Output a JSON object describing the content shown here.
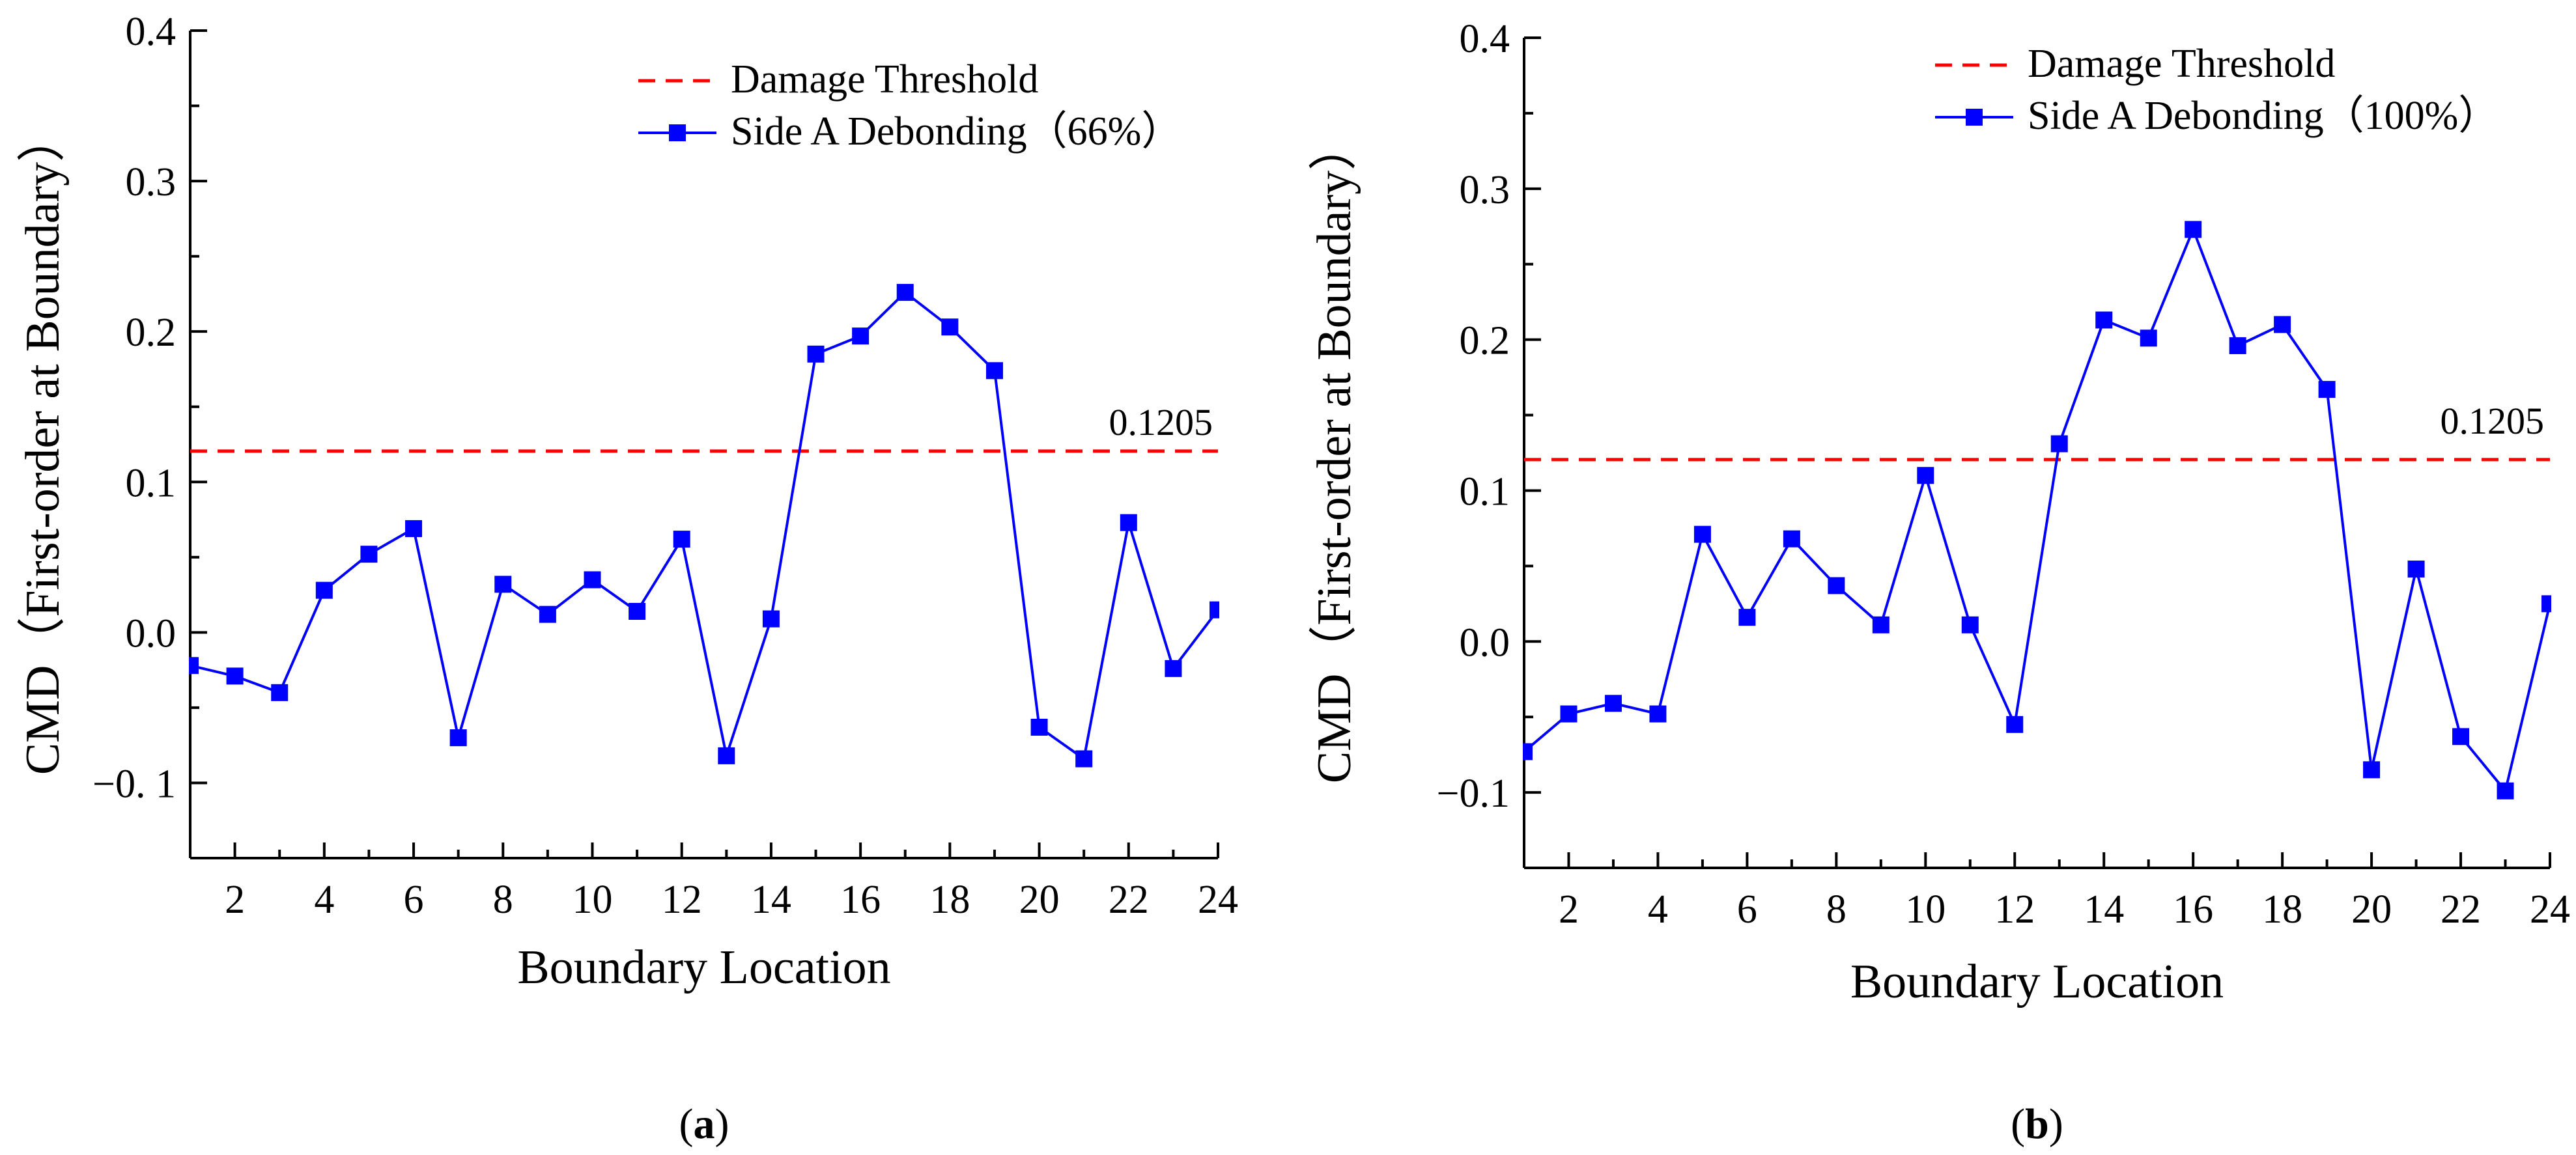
{
  "colors": {
    "series": "#0000ff",
    "threshold": "#ff0000",
    "axis": "#000000"
  },
  "chart_data": [
    {
      "type": "line",
      "panel_label_open": "(",
      "panel_label_letter": "a",
      "panel_label_close": ")",
      "xlabel": "Boundary Location",
      "ylabel": "CMD（First-order at Boundary）",
      "xlim": [
        1,
        24
      ],
      "ylim": [
        -0.15,
        0.4
      ],
      "x_ticks": [
        2,
        4,
        6,
        8,
        10,
        12,
        14,
        16,
        18,
        20,
        22,
        24
      ],
      "x_tick_labels": [
        "2",
        "4",
        "6",
        "8",
        "10",
        "12",
        "14",
        "16",
        "18",
        "20",
        "22",
        "24"
      ],
      "y_ticks": [
        -0.1,
        0.0,
        0.1,
        0.2,
        0.3,
        0.4
      ],
      "y_tick_labels": [
        "−0. 1",
        "0.0",
        "0.1",
        "0.2",
        "0.3",
        "0.4"
      ],
      "legend_position": "top-right",
      "threshold": {
        "name": "Damage Threshold",
        "value": 0.1205,
        "label": "0.1205"
      },
      "series": [
        {
          "name": "Side A Debonding（66%）",
          "marker": "square",
          "x": [
            1,
            2,
            3,
            4,
            5,
            6,
            7,
            8,
            9,
            10,
            11,
            12,
            13,
            14,
            15,
            16,
            17,
            18,
            19,
            20,
            21,
            22,
            23,
            24
          ],
          "values": [
            -0.022,
            -0.029,
            -0.04,
            0.028,
            0.052,
            0.069,
            -0.07,
            0.032,
            0.012,
            0.035,
            0.014,
            0.062,
            -0.082,
            0.009,
            0.185,
            0.197,
            0.226,
            0.203,
            0.174,
            -0.063,
            -0.084,
            0.073,
            -0.024,
            0.015
          ]
        }
      ]
    },
    {
      "type": "line",
      "panel_label_open": "(",
      "panel_label_letter": "b",
      "panel_label_close": ")",
      "xlabel": "Boundary Location",
      "ylabel": "CMD（First-order at Boundary）",
      "xlim": [
        1,
        24
      ],
      "ylim": [
        -0.15,
        0.4
      ],
      "x_ticks": [
        2,
        4,
        6,
        8,
        10,
        12,
        14,
        16,
        18,
        20,
        22,
        24
      ],
      "x_tick_labels": [
        "2",
        "4",
        "6",
        "8",
        "10",
        "12",
        "14",
        "16",
        "18",
        "20",
        "22",
        "24"
      ],
      "y_ticks": [
        -0.1,
        0.0,
        0.1,
        0.2,
        0.3,
        0.4
      ],
      "y_tick_labels": [
        "−0.1",
        "0.0",
        "0.1",
        "0.2",
        "0.3",
        "0.4"
      ],
      "legend_position": "top-right",
      "threshold": {
        "name": "Damage Threshold",
        "value": 0.1205,
        "label": "0.1205"
      },
      "series": [
        {
          "name": "Side A Debonding（100%）",
          "marker": "square",
          "x": [
            1,
            2,
            3,
            4,
            5,
            6,
            7,
            8,
            9,
            10,
            11,
            12,
            13,
            14,
            15,
            16,
            17,
            18,
            19,
            20,
            21,
            22,
            23,
            24
          ],
          "values": [
            -0.073,
            -0.048,
            -0.041,
            -0.048,
            0.071,
            0.016,
            0.068,
            0.037,
            0.011,
            0.11,
            0.011,
            -0.055,
            0.131,
            0.213,
            0.201,
            0.273,
            0.196,
            0.21,
            0.167,
            -0.085,
            0.048,
            -0.063,
            -0.099,
            0.025
          ]
        }
      ]
    }
  ]
}
